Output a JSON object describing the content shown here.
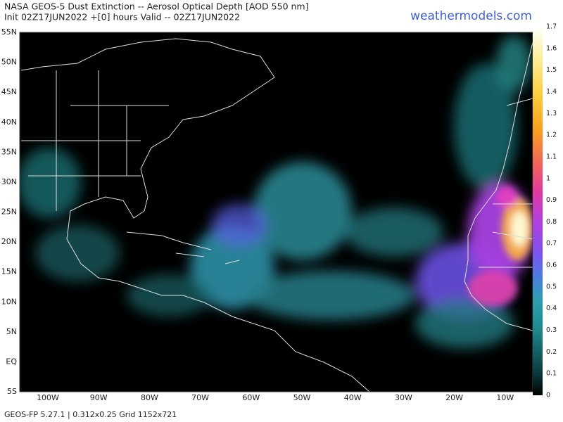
{
  "header": {
    "title": "NASA GEOS-5 Dust Extinction -- Aerosol Optical Depth [AOD 550 nm]",
    "subtitle": "Init 02Z17JUN2022 +[0] hours Valid -- 02Z17JUN2022",
    "site": "weathermodels.com"
  },
  "map": {
    "lat_labels": [
      "55N",
      "50N",
      "45N",
      "40N",
      "35N",
      "30N",
      "25N",
      "20N",
      "15N",
      "10N",
      "5N",
      "EQ",
      "5S"
    ],
    "lon_labels": [
      "100W",
      "90W",
      "80W",
      "70W",
      "60W",
      "50W",
      "40W",
      "30W",
      "20W",
      "10W"
    ]
  },
  "colorbar": {
    "labels": [
      "1.7",
      "1.6",
      "1.5",
      "1.4",
      "1.3",
      "1.2",
      "1.1",
      "1",
      "0.9",
      "0.8",
      "0.7",
      "0.6",
      "0.5",
      "0.4",
      "0.3",
      "0.2",
      "0.1",
      "0"
    ]
  },
  "footer": "GEOS-FP 5.27.1 | 0.312x0.25 Grid 1152x721"
}
